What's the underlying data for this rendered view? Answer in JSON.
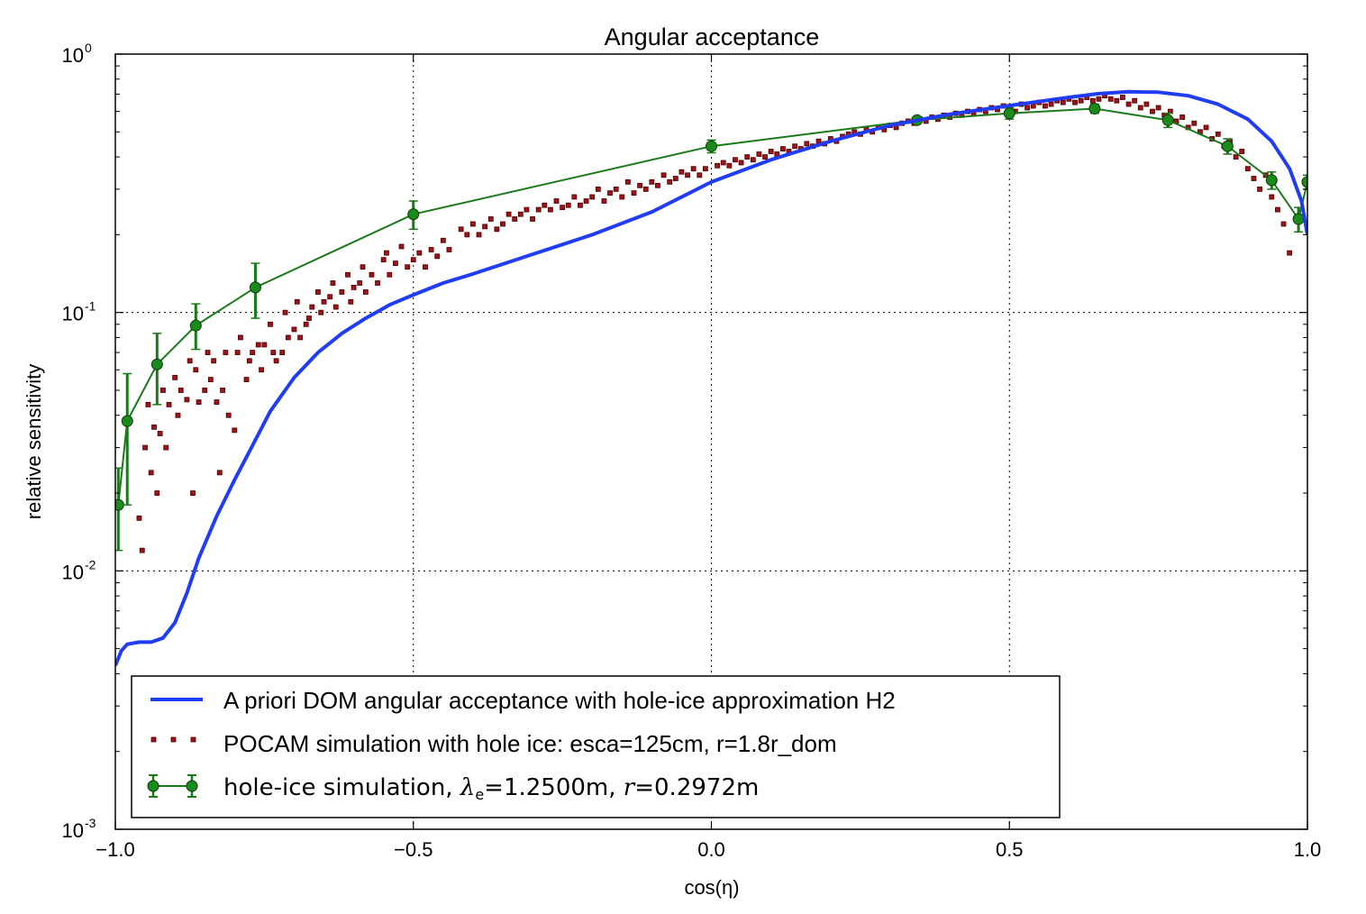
{
  "chart_data": {
    "type": "line",
    "title": "Angular acceptance",
    "xlabel": "cos(η)",
    "ylabel": "relative sensitivity",
    "xlim": [
      -1.0,
      1.0
    ],
    "ylim": [
      0.001,
      1.0
    ],
    "yscale": "log",
    "grid": true,
    "legend_position": "lower-left",
    "x_ticks": [
      {
        "value": -1.0,
        "label": "−1.0"
      },
      {
        "value": -0.5,
        "label": "−0.5"
      },
      {
        "value": 0.0,
        "label": "0.0"
      },
      {
        "value": 0.5,
        "label": "0.5"
      },
      {
        "value": 1.0,
        "label": "1.0"
      }
    ],
    "y_ticks": [
      {
        "value": 1.0,
        "base": "10",
        "exp": "0"
      },
      {
        "value": 0.1,
        "base": "10",
        "exp": "-1"
      },
      {
        "value": 0.01,
        "base": "10",
        "exp": "-2"
      },
      {
        "value": 0.001,
        "base": "10",
        "exp": "-3"
      }
    ],
    "series": [
      {
        "name": "A priori DOM angular acceptance with hole-ice approximation H2",
        "kind": "line",
        "color": "#1f3df5",
        "points": [
          [
            -1.0,
            0.0043
          ],
          [
            -0.99,
            0.0049
          ],
          [
            -0.98,
            0.0052
          ],
          [
            -0.96,
            0.0053
          ],
          [
            -0.94,
            0.0053
          ],
          [
            -0.92,
            0.0055
          ],
          [
            -0.9,
            0.0063
          ],
          [
            -0.88,
            0.0082
          ],
          [
            -0.86,
            0.0112
          ],
          [
            -0.83,
            0.0163
          ],
          [
            -0.8,
            0.0225
          ],
          [
            -0.77,
            0.0305
          ],
          [
            -0.74,
            0.0415
          ],
          [
            -0.7,
            0.056
          ],
          [
            -0.66,
            0.07
          ],
          [
            -0.62,
            0.083
          ],
          [
            -0.58,
            0.095
          ],
          [
            -0.54,
            0.107
          ],
          [
            -0.5,
            0.117
          ],
          [
            -0.45,
            0.13
          ],
          [
            -0.4,
            0.141
          ],
          [
            -0.3,
            0.168
          ],
          [
            -0.2,
            0.2
          ],
          [
            -0.1,
            0.245
          ],
          [
            0.0,
            0.32
          ],
          [
            0.1,
            0.39
          ],
          [
            0.2,
            0.46
          ],
          [
            0.3,
            0.53
          ],
          [
            0.4,
            0.585
          ],
          [
            0.5,
            0.632
          ],
          [
            0.6,
            0.68
          ],
          [
            0.65,
            0.703
          ],
          [
            0.7,
            0.715
          ],
          [
            0.75,
            0.712
          ],
          [
            0.8,
            0.69
          ],
          [
            0.85,
            0.64
          ],
          [
            0.9,
            0.56
          ],
          [
            0.94,
            0.46
          ],
          [
            0.97,
            0.36
          ],
          [
            0.99,
            0.27
          ],
          [
            1.0,
            0.2
          ]
        ]
      },
      {
        "name": "POCAM simulation with hole ice: esca=125cm, r=1.8r_dom",
        "kind": "scatter",
        "color": "#a0121a",
        "points": [
          [
            -0.96,
            0.016
          ],
          [
            -0.955,
            0.012
          ],
          [
            -0.95,
            0.03
          ],
          [
            -0.945,
            0.044
          ],
          [
            -0.94,
            0.024
          ],
          [
            -0.935,
            0.036
          ],
          [
            -0.93,
            0.02
          ],
          [
            -0.925,
            0.034
          ],
          [
            -0.92,
            0.05
          ],
          [
            -0.915,
            0.03
          ],
          [
            -0.91,
            0.044
          ],
          [
            -0.9,
            0.056
          ],
          [
            -0.895,
            0.04
          ],
          [
            -0.89,
            0.05
          ],
          [
            -0.88,
            0.046
          ],
          [
            -0.875,
            0.065
          ],
          [
            -0.87,
            0.02
          ],
          [
            -0.865,
            0.06
          ],
          [
            -0.86,
            0.045
          ],
          [
            -0.85,
            0.05
          ],
          [
            -0.845,
            0.07
          ],
          [
            -0.84,
            0.055
          ],
          [
            -0.835,
            0.065
          ],
          [
            -0.83,
            0.045
          ],
          [
            -0.825,
            0.024
          ],
          [
            -0.82,
            0.05
          ],
          [
            -0.815,
            0.07
          ],
          [
            -0.81,
            0.04
          ],
          [
            -0.8,
            0.035
          ],
          [
            -0.795,
            0.07
          ],
          [
            -0.79,
            0.08
          ],
          [
            -0.78,
            0.055
          ],
          [
            -0.775,
            0.065
          ],
          [
            -0.77,
            0.07
          ],
          [
            -0.76,
            0.075
          ],
          [
            -0.755,
            0.06
          ],
          [
            -0.75,
            0.075
          ],
          [
            -0.74,
            0.09
          ],
          [
            -0.735,
            0.07
          ],
          [
            -0.73,
            0.065
          ],
          [
            -0.72,
            0.07
          ],
          [
            -0.715,
            0.1
          ],
          [
            -0.71,
            0.08
          ],
          [
            -0.7,
            0.086
          ],
          [
            -0.695,
            0.11
          ],
          [
            -0.69,
            0.08
          ],
          [
            -0.68,
            0.09
          ],
          [
            -0.675,
            0.095
          ],
          [
            -0.67,
            0.105
          ],
          [
            -0.66,
            0.12
          ],
          [
            -0.655,
            0.1
          ],
          [
            -0.65,
            0.11
          ],
          [
            -0.64,
            0.115
          ],
          [
            -0.635,
            0.13
          ],
          [
            -0.63,
            0.105
          ],
          [
            -0.62,
            0.12
          ],
          [
            -0.61,
            0.14
          ],
          [
            -0.605,
            0.11
          ],
          [
            -0.6,
            0.125
          ],
          [
            -0.59,
            0.13
          ],
          [
            -0.585,
            0.15
          ],
          [
            -0.58,
            0.12
          ],
          [
            -0.57,
            0.14
          ],
          [
            -0.56,
            0.13
          ],
          [
            -0.55,
            0.16
          ],
          [
            -0.545,
            0.17
          ],
          [
            -0.54,
            0.14
          ],
          [
            -0.53,
            0.155
          ],
          [
            -0.52,
            0.18
          ],
          [
            -0.51,
            0.15
          ],
          [
            -0.5,
            0.16
          ],
          [
            -0.49,
            0.17
          ],
          [
            -0.48,
            0.15
          ],
          [
            -0.47,
            0.175
          ],
          [
            -0.46,
            0.165
          ],
          [
            -0.45,
            0.19
          ],
          [
            -0.44,
            0.175
          ],
          [
            -0.42,
            0.21
          ],
          [
            -0.41,
            0.2
          ],
          [
            -0.4,
            0.22
          ],
          [
            -0.39,
            0.2
          ],
          [
            -0.38,
            0.215
          ],
          [
            -0.37,
            0.23
          ],
          [
            -0.36,
            0.21
          ],
          [
            -0.35,
            0.22
          ],
          [
            -0.34,
            0.24
          ],
          [
            -0.33,
            0.23
          ],
          [
            -0.32,
            0.24
          ],
          [
            -0.31,
            0.25
          ],
          [
            -0.3,
            0.23
          ],
          [
            -0.29,
            0.25
          ],
          [
            -0.28,
            0.26
          ],
          [
            -0.27,
            0.25
          ],
          [
            -0.26,
            0.27
          ],
          [
            -0.25,
            0.255
          ],
          [
            -0.24,
            0.26
          ],
          [
            -0.23,
            0.28
          ],
          [
            -0.22,
            0.26
          ],
          [
            -0.21,
            0.27
          ],
          [
            -0.2,
            0.28
          ],
          [
            -0.19,
            0.3
          ],
          [
            -0.18,
            0.27
          ],
          [
            -0.17,
            0.29
          ],
          [
            -0.16,
            0.3
          ],
          [
            -0.15,
            0.28
          ],
          [
            -0.14,
            0.32
          ],
          [
            -0.13,
            0.29
          ],
          [
            -0.12,
            0.31
          ],
          [
            -0.11,
            0.3
          ],
          [
            -0.1,
            0.32
          ],
          [
            -0.09,
            0.31
          ],
          [
            -0.08,
            0.34
          ],
          [
            -0.07,
            0.32
          ],
          [
            -0.06,
            0.33
          ],
          [
            -0.05,
            0.35
          ],
          [
            -0.04,
            0.34
          ],
          [
            -0.03,
            0.36
          ],
          [
            -0.02,
            0.34
          ],
          [
            -0.01,
            0.36
          ],
          [
            0.01,
            0.37
          ],
          [
            0.02,
            0.38
          ],
          [
            0.03,
            0.37
          ],
          [
            0.04,
            0.39
          ],
          [
            0.05,
            0.38
          ],
          [
            0.06,
            0.4
          ],
          [
            0.07,
            0.39
          ],
          [
            0.08,
            0.41
          ],
          [
            0.09,
            0.4
          ],
          [
            0.1,
            0.42
          ],
          [
            0.11,
            0.41
          ],
          [
            0.12,
            0.43
          ],
          [
            0.13,
            0.42
          ],
          [
            0.14,
            0.44
          ],
          [
            0.15,
            0.43
          ],
          [
            0.16,
            0.45
          ],
          [
            0.17,
            0.44
          ],
          [
            0.18,
            0.46
          ],
          [
            0.19,
            0.45
          ],
          [
            0.2,
            0.47
          ],
          [
            0.21,
            0.46
          ],
          [
            0.22,
            0.48
          ],
          [
            0.23,
            0.49
          ],
          [
            0.24,
            0.5
          ],
          [
            0.25,
            0.49
          ],
          [
            0.26,
            0.51
          ],
          [
            0.27,
            0.5
          ],
          [
            0.28,
            0.52
          ],
          [
            0.29,
            0.51
          ],
          [
            0.3,
            0.53
          ],
          [
            0.31,
            0.52
          ],
          [
            0.32,
            0.54
          ],
          [
            0.33,
            0.55
          ],
          [
            0.34,
            0.54
          ],
          [
            0.35,
            0.56
          ],
          [
            0.36,
            0.55
          ],
          [
            0.37,
            0.57
          ],
          [
            0.38,
            0.56
          ],
          [
            0.39,
            0.58
          ],
          [
            0.4,
            0.57
          ],
          [
            0.41,
            0.59
          ],
          [
            0.42,
            0.58
          ],
          [
            0.43,
            0.6
          ],
          [
            0.44,
            0.59
          ],
          [
            0.45,
            0.61
          ],
          [
            0.46,
            0.6
          ],
          [
            0.47,
            0.62
          ],
          [
            0.48,
            0.61
          ],
          [
            0.49,
            0.63
          ],
          [
            0.5,
            0.62
          ],
          [
            0.51,
            0.6
          ],
          [
            0.52,
            0.64
          ],
          [
            0.53,
            0.62
          ],
          [
            0.54,
            0.63
          ],
          [
            0.55,
            0.65
          ],
          [
            0.56,
            0.63
          ],
          [
            0.57,
            0.64
          ],
          [
            0.58,
            0.66
          ],
          [
            0.59,
            0.65
          ],
          [
            0.6,
            0.67
          ],
          [
            0.61,
            0.65
          ],
          [
            0.62,
            0.66
          ],
          [
            0.63,
            0.68
          ],
          [
            0.64,
            0.66
          ],
          [
            0.65,
            0.67
          ],
          [
            0.66,
            0.69
          ],
          [
            0.67,
            0.67
          ],
          [
            0.68,
            0.66
          ],
          [
            0.69,
            0.68
          ],
          [
            0.7,
            0.64
          ],
          [
            0.71,
            0.66
          ],
          [
            0.72,
            0.62
          ],
          [
            0.73,
            0.64
          ],
          [
            0.74,
            0.6
          ],
          [
            0.75,
            0.62
          ],
          [
            0.76,
            0.58
          ],
          [
            0.77,
            0.6
          ],
          [
            0.78,
            0.55
          ],
          [
            0.79,
            0.57
          ],
          [
            0.8,
            0.52
          ],
          [
            0.81,
            0.54
          ],
          [
            0.82,
            0.5
          ],
          [
            0.83,
            0.52
          ],
          [
            0.84,
            0.47
          ],
          [
            0.85,
            0.49
          ],
          [
            0.86,
            0.44
          ],
          [
            0.87,
            0.46
          ],
          [
            0.88,
            0.4
          ],
          [
            0.89,
            0.42
          ],
          [
            0.9,
            0.36
          ],
          [
            0.91,
            0.33
          ],
          [
            0.92,
            0.3
          ],
          [
            0.93,
            0.34
          ],
          [
            0.94,
            0.28
          ],
          [
            0.95,
            0.25
          ],
          [
            0.96,
            0.22
          ],
          [
            0.97,
            0.17
          ]
        ]
      },
      {
        "name": "hole-ice simulation, λe=1.2500m, r=0.2972m",
        "kind": "errorbar",
        "color": "#1a7a1a",
        "marker_color": "#1a8a1a",
        "points": [
          {
            "x": -0.995,
            "y": 0.018,
            "lo": 0.012,
            "hi": 0.025
          },
          {
            "x": -0.98,
            "y": 0.038,
            "lo": 0.018,
            "hi": 0.058
          },
          {
            "x": -0.93,
            "y": 0.063,
            "lo": 0.044,
            "hi": 0.083
          },
          {
            "x": -0.865,
            "y": 0.089,
            "lo": 0.072,
            "hi": 0.108
          },
          {
            "x": -0.765,
            "y": 0.125,
            "lo": 0.095,
            "hi": 0.155
          },
          {
            "x": -0.5,
            "y": 0.24,
            "lo": 0.21,
            "hi": 0.27
          },
          {
            "x": 0.0,
            "y": 0.44,
            "lo": 0.415,
            "hi": 0.465
          },
          {
            "x": 0.345,
            "y": 0.555,
            "lo": 0.54,
            "hi": 0.57
          },
          {
            "x": 0.5,
            "y": 0.59,
            "lo": 0.56,
            "hi": 0.62
          },
          {
            "x": 0.643,
            "y": 0.615,
            "lo": 0.59,
            "hi": 0.64
          },
          {
            "x": 0.766,
            "y": 0.555,
            "lo": 0.52,
            "hi": 0.59
          },
          {
            "x": 0.866,
            "y": 0.44,
            "lo": 0.41,
            "hi": 0.47
          },
          {
            "x": 0.94,
            "y": 0.325,
            "lo": 0.3,
            "hi": 0.35
          },
          {
            "x": 0.985,
            "y": 0.23,
            "lo": 0.205,
            "hi": 0.255
          },
          {
            "x": 1.0,
            "y": 0.32,
            "lo": 0.3,
            "hi": 0.34
          }
        ]
      }
    ],
    "legend": {
      "entry1": "A priori DOM angular acceptance with hole-ice approximation H2",
      "entry2": "POCAM simulation with hole ice: esca=125cm, r=1.8r_dom",
      "entry3_parts": {
        "prefix": "hole-ice simulation, ",
        "lambda": "λ",
        "lambda_sub": "e",
        "mid": "=1.2500m, ",
        "r": "r",
        "suffix": "=0.2972m"
      }
    }
  }
}
